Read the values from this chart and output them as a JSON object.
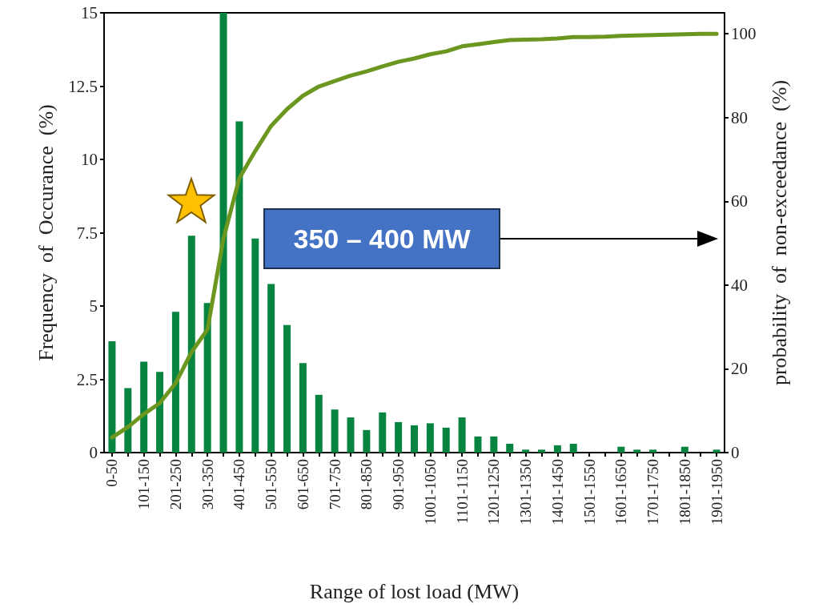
{
  "chart_data": {
    "type": "bar",
    "xlabel": "Range of lost load (MW)",
    "ylabel": "Frequency  of  Occurance  (%)",
    "y2label": "probability  of  non-exceedance  (%)",
    "categories": [
      "0-50",
      null,
      "101-150",
      null,
      "201-250",
      null,
      "301-350",
      null,
      "401-450",
      null,
      "501-550",
      null,
      "601-650",
      null,
      "701-750",
      null,
      "801-850",
      null,
      "901-950",
      null,
      "1001-1050",
      null,
      "1101-1150",
      null,
      "1201-1250",
      null,
      "1301-1350",
      null,
      "1401-1450",
      null,
      "1501-1550",
      null,
      "1601-1650",
      null,
      "1701-1750",
      null,
      "1801-1850",
      null,
      "1901-1950"
    ],
    "series": [
      {
        "color": "#078540",
        "values": [
          3.8,
          2.2,
          3.1,
          2.75,
          4.8,
          7.4,
          5.1,
          15,
          11.3,
          7.3,
          5.75,
          4.35,
          3.05,
          1.97,
          1.47,
          1.2,
          0.77,
          1.37,
          1.04,
          0.93,
          1.0,
          0.85,
          1.2,
          0.55,
          0.55,
          0.3,
          0.1,
          0.1,
          0.25,
          0.3,
          0,
          0,
          0.2,
          0.1,
          0.1,
          0,
          0.2,
          0,
          0.1
        ]
      },
      {
        "type": "line",
        "axis": "y2",
        "color": "#6b961f",
        "values": [
          3.6,
          6.1,
          9.2,
          11.8,
          16.6,
          24,
          29.4,
          51,
          65.5,
          72,
          78,
          82,
          85.2,
          87.4,
          88.7,
          90,
          91,
          92.2,
          93.3,
          94.1,
          95.1,
          95.8,
          97,
          97.5,
          98,
          98.5,
          98.6,
          98.7,
          98.9,
          99.2,
          99.2,
          99.3,
          99.5,
          99.6,
          99.7,
          99.8,
          99.9,
          100,
          100
        ]
      }
    ],
    "ylim": [
      0,
      15
    ],
    "yticks": [
      0,
      2.5,
      5,
      7.5,
      10,
      12.5,
      15
    ],
    "y2lim": [
      0,
      105
    ],
    "y2ticks": [
      0,
      20,
      40,
      60,
      80,
      100
    ],
    "marker": "none",
    "line_style": "solid",
    "grid": false,
    "annotations": [
      "350 – 400 MW"
    ]
  }
}
